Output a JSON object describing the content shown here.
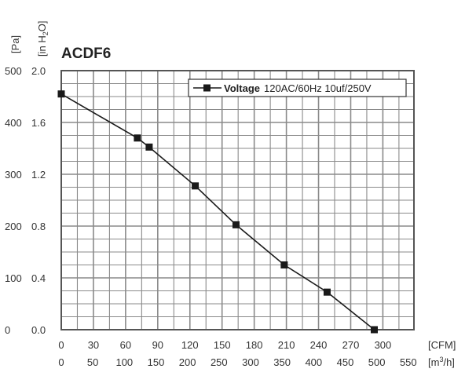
{
  "chart_data": {
    "type": "line",
    "title": "ACDF6",
    "y_units": {
      "pa": "[Pa]",
      "inh2o_prefix": "[in H",
      "inh2o_sub": "2",
      "inh2o_suffix": "O]"
    },
    "x_units": {
      "cfm": "[CFM]",
      "m3h_prefix": "[m",
      "m3h_sup": "3",
      "m3h_suffix": "/h]"
    },
    "y_ticks_pa": [
      "500",
      "400",
      "300",
      "200",
      "100",
      "0"
    ],
    "y_ticks_inh2o": [
      "2.0",
      "1.6",
      "1.2",
      "0.8",
      "0.4",
      "0.0"
    ],
    "x_ticks_cfm": [
      "0",
      "30",
      "60",
      "90",
      "120",
      "150",
      "180",
      "210",
      "240",
      "270",
      "300"
    ],
    "x_ticks_m3h": [
      "0",
      "50",
      "100",
      "150",
      "200",
      "250",
      "300",
      "350",
      "400",
      "450",
      "500",
      "550"
    ],
    "xlim_cfm": [
      0,
      300
    ],
    "ylim_inh2o": [
      0,
      2.0
    ],
    "grid": true,
    "legend_position": "top-right",
    "series": [
      {
        "name_bold": "Voltage",
        "name_rest": "120AC/60Hz 10uf/250V",
        "color": "#1a1a1a",
        "marker": "square",
        "x": [
          0,
          71,
          82,
          125,
          163,
          208,
          248,
          292
        ],
        "y": [
          1.82,
          1.48,
          1.41,
          1.11,
          0.81,
          0.5,
          0.29,
          0.0
        ]
      }
    ]
  }
}
